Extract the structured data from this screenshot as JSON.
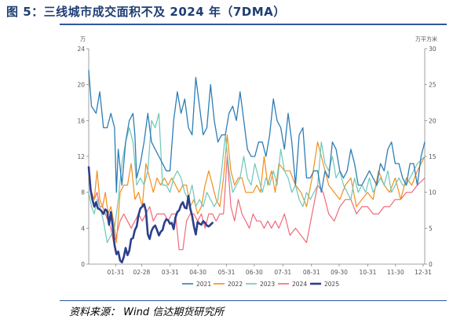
{
  "figure": {
    "title": "图 5：三线城市成交面积不及 2024 年（7DMA）",
    "source": "资料来源：   Wind  信达期货研究所"
  },
  "chart_data": {
    "type": "line",
    "left_unit": "万平方米",
    "right_unit": "万平方米",
    "left_ylim": [
      0,
      24
    ],
    "right_ylim": [
      0,
      30
    ],
    "left_ticks": [
      "0",
      "4",
      "8",
      "12",
      "16",
      "20",
      "24"
    ],
    "right_ticks": [
      "0",
      "5",
      "10",
      "15",
      "20",
      "25",
      "30"
    ],
    "x_ticks": [
      "01-31",
      "02-28",
      "03-31",
      "04-30",
      "05-31",
      "06-30",
      "07-31",
      "08-31",
      "09-30",
      "10-31",
      "11-30",
      "12-31"
    ],
    "series": [
      {
        "name": "2021",
        "axis": "right",
        "color": "#2e7db5",
        "width": 1.3,
        "x": [
          0,
          3,
          8,
          12,
          16,
          20,
          24,
          28,
          30,
          32,
          36,
          40,
          44,
          48,
          50,
          52,
          56,
          60,
          64,
          68,
          72,
          76,
          80,
          84,
          88,
          92,
          96,
          100,
          104,
          108,
          112,
          116,
          120,
          124,
          128,
          132,
          136,
          140,
          144,
          148,
          152,
          156,
          160,
          164,
          168,
          172,
          176,
          180,
          184,
          188,
          192,
          196,
          200,
          204,
          208,
          212,
          216,
          220,
          224,
          228,
          232,
          236,
          240,
          244,
          248,
          252,
          256,
          260,
          264,
          268,
          272,
          276,
          280,
          284,
          288,
          292,
          296,
          300,
          304,
          308,
          312,
          316,
          320,
          324,
          328,
          332,
          336,
          340,
          344,
          348,
          352,
          356,
          360,
          364
        ],
        "y": [
          27,
          22,
          21,
          24,
          19,
          19,
          21,
          19,
          10,
          16,
          11,
          17,
          20,
          21,
          18,
          12,
          14,
          17,
          21,
          17,
          16,
          15,
          14,
          13,
          13,
          20,
          24,
          21,
          23,
          19,
          18,
          26,
          22,
          18,
          19,
          25,
          20,
          17,
          18,
          18,
          21,
          22,
          20,
          24,
          20,
          16,
          15,
          15,
          17,
          17,
          15,
          18,
          23,
          20,
          19,
          16,
          21,
          17,
          11,
          18,
          19,
          12,
          12,
          13,
          13,
          10,
          13,
          12,
          17,
          16,
          13,
          12,
          13,
          16,
          14,
          11,
          11,
          12,
          13,
          12,
          11,
          14,
          13,
          16,
          17,
          14,
          14,
          12,
          11,
          14,
          14,
          11,
          15,
          17
        ]
      },
      {
        "name": "2022",
        "axis": "right",
        "color": "#f28e1c",
        "width": 1.2,
        "x": [
          0,
          3,
          6,
          9,
          12,
          15,
          18,
          21,
          24,
          27,
          30,
          34,
          38,
          42,
          46,
          50,
          54,
          58,
          62,
          66,
          70,
          74,
          78,
          82,
          86,
          90,
          94,
          98,
          102,
          106,
          110,
          114,
          118,
          122,
          126,
          130,
          134,
          138,
          142,
          146,
          150,
          154,
          158,
          162,
          166,
          170,
          174,
          178,
          182,
          186,
          190,
          194,
          198,
          202,
          206,
          212,
          218,
          224,
          230,
          236,
          242,
          248,
          254,
          260,
          266,
          272,
          278,
          284,
          290,
          296,
          302,
          308,
          314,
          320,
          326,
          332,
          338,
          344,
          350,
          356,
          364
        ],
        "y": [
          12,
          10,
          9,
          13,
          9,
          8,
          10,
          7,
          8,
          6,
          3,
          10,
          11,
          11,
          14,
          9,
          10,
          8,
          14,
          12,
          10,
          12,
          11,
          12,
          11,
          12,
          11,
          10,
          11,
          11,
          8,
          9,
          7,
          8,
          11,
          13,
          11,
          9,
          8,
          12,
          18,
          13,
          11,
          12,
          12,
          10,
          10,
          10,
          11,
          10,
          15,
          11,
          13,
          10,
          14,
          13,
          13,
          11,
          10,
          8,
          12,
          17,
          14,
          11,
          10,
          9,
          11,
          12,
          8,
          9,
          10,
          9,
          13,
          11,
          10,
          12,
          9,
          12,
          11,
          13,
          15
        ]
      },
      {
        "name": "2023",
        "axis": "right",
        "color": "#6ec7b9",
        "width": 1.2,
        "x": [
          0,
          3,
          6,
          9,
          12,
          16,
          20,
          24,
          28,
          32,
          36,
          40,
          44,
          48,
          52,
          56,
          60,
          64,
          68,
          72,
          76,
          80,
          84,
          88,
          92,
          96,
          100,
          104,
          108,
          112,
          116,
          120,
          124,
          128,
          132,
          136,
          140,
          144,
          148,
          152,
          156,
          160,
          164,
          168,
          172,
          176,
          180,
          184,
          188,
          192,
          196,
          200,
          204,
          208,
          212,
          216,
          220,
          224,
          228,
          232,
          236,
          240,
          244,
          248,
          252,
          256,
          260,
          264,
          268,
          272,
          276,
          280,
          284,
          288,
          292,
          296,
          300,
          304,
          308,
          312,
          316,
          320,
          324,
          328,
          332,
          336,
          340,
          344,
          348,
          352,
          356,
          364
        ],
        "y": [
          10,
          8,
          7,
          9,
          8,
          6,
          3,
          4,
          5,
          9,
          14,
          17,
          19,
          17,
          11,
          12,
          11,
          13,
          20,
          19,
          21,
          11,
          11,
          10,
          12,
          13,
          12,
          10,
          9,
          11,
          8,
          9,
          8,
          10,
          9,
          8,
          9,
          13,
          18,
          13,
          10,
          11,
          12,
          15,
          12,
          11,
          14,
          12,
          10,
          12,
          11,
          13,
          11,
          16,
          13,
          12,
          10,
          11,
          9,
          8,
          10,
          9,
          10,
          11,
          17,
          14,
          13,
          15,
          12,
          13,
          11,
          10,
          9,
          12,
          10,
          11,
          10,
          12,
          10,
          11,
          12,
          11,
          13,
          10,
          11,
          12,
          11,
          11,
          12,
          13,
          14,
          15
        ]
      },
      {
        "name": "2024",
        "axis": "right",
        "color": "#f06a7a",
        "width": 1.2,
        "x": [
          0,
          3,
          6,
          9,
          12,
          15,
          18,
          21,
          24,
          27,
          30,
          34,
          38,
          42,
          46,
          50,
          54,
          58,
          62,
          66,
          70,
          74,
          78,
          82,
          86,
          90,
          94,
          98,
          102,
          106,
          110,
          114,
          118,
          122,
          126,
          130,
          134,
          138,
          142,
          146,
          150,
          154,
          158,
          162,
          166,
          170,
          174,
          178,
          182,
          186,
          190,
          194,
          198,
          202,
          206,
          212,
          218,
          224,
          230,
          236,
          242,
          248,
          254,
          260,
          266,
          272,
          278,
          284,
          290,
          296,
          302,
          308,
          314,
          320,
          326,
          332,
          338,
          344,
          350,
          356,
          364
        ],
        "y": [
          12,
          10,
          9,
          10,
          8,
          8,
          7,
          6,
          5,
          3,
          4,
          6,
          7,
          6,
          5,
          6,
          7,
          6,
          7,
          8,
          6,
          7,
          7,
          7,
          6,
          7,
          7,
          2,
          2,
          6,
          7,
          7,
          6,
          7,
          5,
          7,
          7,
          6,
          7,
          7,
          15,
          8,
          6,
          9,
          7,
          6,
          5,
          7,
          6,
          6,
          5,
          6,
          5,
          6,
          5,
          7,
          4,
          5,
          4,
          3,
          7,
          11,
          10,
          7,
          6,
          8,
          9,
          9,
          7,
          8,
          8,
          7,
          7,
          8,
          8,
          9,
          9,
          10,
          10,
          11,
          12
        ]
      },
      {
        "name": "2025",
        "axis": "left",
        "color": "#2b3f8a",
        "width": 2.6,
        "x": [
          0,
          2,
          4,
          6,
          8,
          10,
          12,
          14,
          16,
          18,
          20,
          22,
          24,
          26,
          28,
          30,
          32,
          34,
          36,
          38,
          40,
          42,
          44,
          46,
          48,
          50,
          52,
          54,
          56,
          58,
          60,
          62,
          64,
          66,
          68,
          70,
          72,
          74,
          76,
          78,
          80,
          82,
          84,
          86,
          88,
          90,
          92,
          94,
          96,
          98,
          100,
          102,
          104,
          106,
          108,
          110,
          112,
          114,
          116,
          118,
          120,
          122,
          124,
          126,
          128,
          130,
          132,
          134
        ],
        "y": [
          10.8,
          8.3,
          7.2,
          6.4,
          6.9,
          6.2,
          6.1,
          5.9,
          5.6,
          6.1,
          5.9,
          4.4,
          5.8,
          4.2,
          2.1,
          1.1,
          1.4,
          0.4,
          0.2,
          0.8,
          1.8,
          1.0,
          1.5,
          2.8,
          2.9,
          3.8,
          4.2,
          5.5,
          6.2,
          6.4,
          6.7,
          5.9,
          3.3,
          2.8,
          3.7,
          4.1,
          4.3,
          3.8,
          3.2,
          3.6,
          3.8,
          4.6,
          5.0,
          4.9,
          4.5,
          4.6,
          3.9,
          5.2,
          5.8,
          6.0,
          6.6,
          6.9,
          6.3,
          6.2,
          7.6,
          6.2,
          5.4,
          4.2,
          3.3,
          4.7,
          4.5,
          4.4,
          4.8,
          4.6,
          4.3,
          4.2,
          4.4,
          4.6
        ]
      }
    ]
  }
}
